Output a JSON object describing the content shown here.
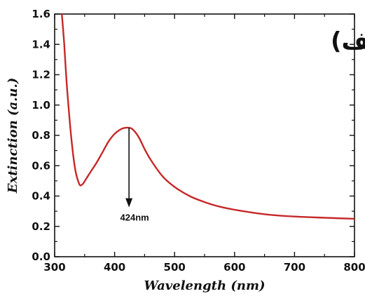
{
  "chart_data": {
    "type": "line",
    "xlabel": "Wavelength (nm)",
    "ylabel": "Extinction (a.u.)",
    "xlim": [
      300,
      800
    ],
    "ylim": [
      0.0,
      1.6
    ],
    "x_ticks": [
      "300",
      "400",
      "500",
      "600",
      "700",
      "800"
    ],
    "y_ticks": [
      "0.0",
      "0.2",
      "0.4",
      "0.6",
      "0.8",
      "1.0",
      "1.2",
      "1.4",
      "1.6"
    ],
    "panel_label": "الف)",
    "grid": false,
    "series": [
      {
        "color": "#c62828",
        "x": [
          312,
          316,
          320,
          325,
          330,
          335,
          340,
          343,
          347,
          352,
          360,
          370,
          380,
          390,
          400,
          410,
          418,
          424,
          430,
          440,
          450,
          460,
          480,
          500,
          525,
          550,
          575,
          600,
          650,
          700,
          750,
          800
        ],
        "y": [
          1.62,
          1.4,
          1.15,
          0.9,
          0.7,
          0.56,
          0.49,
          0.47,
          0.48,
          0.51,
          0.56,
          0.62,
          0.69,
          0.76,
          0.81,
          0.84,
          0.85,
          0.85,
          0.84,
          0.79,
          0.71,
          0.64,
          0.53,
          0.46,
          0.4,
          0.36,
          0.33,
          0.31,
          0.28,
          0.265,
          0.257,
          0.25
        ]
      }
    ],
    "annotations": [
      {
        "text": "424nm",
        "x": 424,
        "y_top": 0.85,
        "y_bottom": 0.33
      }
    ]
  }
}
